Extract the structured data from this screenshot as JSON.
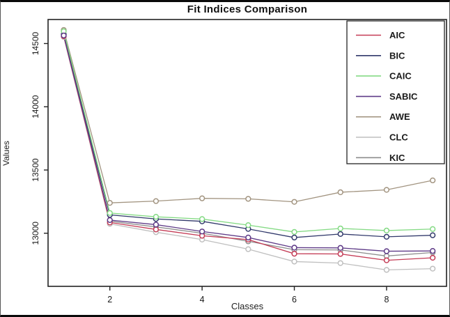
{
  "chart": {
    "title": "Fit Indices Comparison",
    "xlabel": "Classes",
    "ylabel": "Values"
  },
  "chart_data": {
    "type": "line",
    "title": "Fit Indices Comparison",
    "xlabel": "Classes",
    "ylabel": "Values",
    "x": [
      1,
      2,
      3,
      4,
      5,
      6,
      7,
      8,
      9
    ],
    "xticks": [
      2,
      4,
      6,
      8
    ],
    "yticks": [
      13000,
      13500,
      14000,
      14500
    ],
    "xlim": [
      0.66,
      9.3
    ],
    "ylim": [
      12580,
      14690
    ],
    "grid": false,
    "marker": "open-circle",
    "legend_position": "top-right",
    "axis_color": "#222222",
    "series": [
      {
        "name": "AIC",
        "color": "#c43b55",
        "values": [
          14558,
          13085,
          13030,
          12980,
          12950,
          12838,
          12836,
          12786,
          12806
        ]
      },
      {
        "name": "BIC",
        "color": "#31396b",
        "values": [
          14572,
          13145,
          13113,
          13094,
          13034,
          12966,
          12994,
          12972,
          12984
        ]
      },
      {
        "name": "CAIC",
        "color": "#84da84",
        "values": [
          14597,
          13160,
          13130,
          13112,
          13064,
          13010,
          13038,
          13021,
          13033
        ]
      },
      {
        "name": "SABIC",
        "color": "#5e3a87",
        "values": [
          14564,
          13104,
          13068,
          13014,
          12966,
          12886,
          12884,
          12858,
          12860
        ]
      },
      {
        "name": "AWE",
        "color": "#a29480",
        "values": [
          14607,
          13240,
          13254,
          13276,
          13272,
          13248,
          13324,
          13343,
          13418
        ]
      },
      {
        "name": "CLC",
        "color": "#bfbfbf",
        "values": [
          14552,
          13074,
          13008,
          12950,
          12874,
          12776,
          12764,
          12710,
          12720
        ]
      },
      {
        "name": "KIC",
        "color": "#8d8d8d",
        "values": [
          14575,
          13095,
          13050,
          13000,
          12936,
          12870,
          12868,
          12820,
          12848
        ]
      }
    ]
  }
}
